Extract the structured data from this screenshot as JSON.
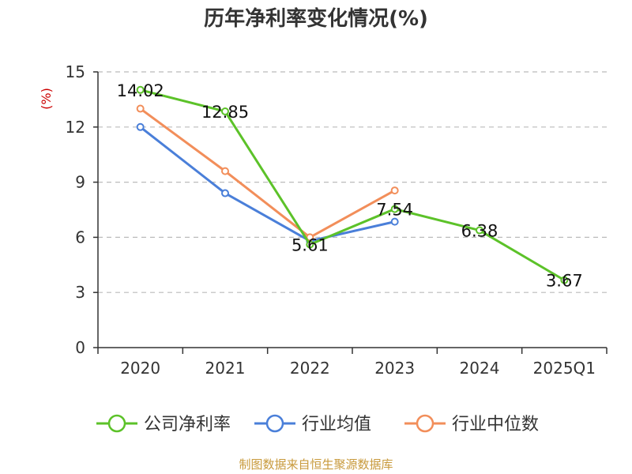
{
  "chart_data": {
    "type": "line",
    "title": "历年净利率变化情况(%)",
    "ylabel": "(%)",
    "xlabel": "",
    "categories": [
      "2020",
      "2021",
      "2022",
      "2023",
      "2024",
      "2025Q1"
    ],
    "ylim": [
      0,
      15
    ],
    "yticks": [
      0,
      3,
      6,
      9,
      12,
      15
    ],
    "grid": true,
    "legend_position": "bottom",
    "series": [
      {
        "name": "公司净利率",
        "color": "#5cc229",
        "values": [
          14.02,
          12.85,
          5.61,
          7.54,
          6.38,
          3.67
        ],
        "labels": [
          "14.02",
          "12.85",
          "5.61",
          "7.54",
          "6.38",
          "3.67"
        ]
      },
      {
        "name": "行业均值",
        "color": "#4a7fd9",
        "values": [
          12.0,
          8.4,
          5.8,
          6.85,
          null,
          null
        ]
      },
      {
        "name": "行业中位数",
        "color": "#f28e5a",
        "values": [
          13.0,
          9.6,
          6.0,
          8.55,
          null,
          null
        ]
      }
    ]
  },
  "colors": {
    "ylabel": "#cc0000",
    "source": "#c89a3c",
    "axis": "#333333",
    "grid": "#bbbbbb"
  },
  "footer": {
    "source": "制图数据来自恒生聚源数据库"
  }
}
